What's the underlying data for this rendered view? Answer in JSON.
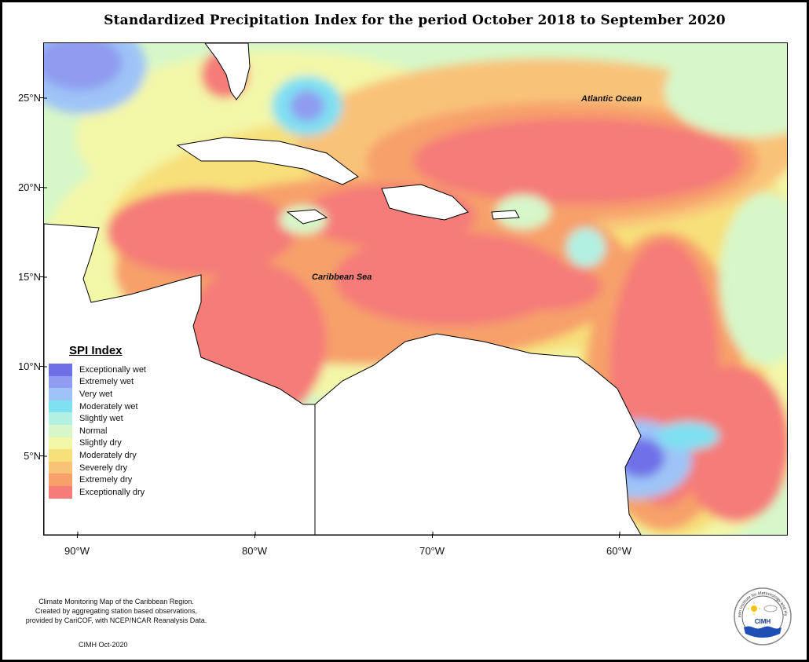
{
  "title": "Standardized Precipitation Index for the period October 2018 to September 2020",
  "axes": {
    "lat_labels": [
      "25°N",
      "20°N",
      "15°N",
      "10°N",
      "5°N"
    ],
    "lon_labels": [
      "90°W",
      "80°W",
      "70°W",
      "60°W"
    ]
  },
  "map_labels": {
    "atlantic": "Atlantic Ocean",
    "caribbean": "Caribbean Sea"
  },
  "legend": {
    "title": "SPI Index",
    "items": [
      {
        "label": "Exceptionally wet",
        "color": "#6f6fe8"
      },
      {
        "label": "Extremely wet",
        "color": "#8f9cf0"
      },
      {
        "label": "Very wet",
        "color": "#9ec4f7"
      },
      {
        "label": "Moderately wet",
        "color": "#7fe0f2"
      },
      {
        "label": "Slightly wet",
        "color": "#b2f0e2"
      },
      {
        "label": "Normal",
        "color": "#d7f7c8"
      },
      {
        "label": "Slightly dry",
        "color": "#f3f7a8"
      },
      {
        "label": "Moderately dry",
        "color": "#f7e07a"
      },
      {
        "label": "Severely dry",
        "color": "#f9c279"
      },
      {
        "label": "Extremely dry",
        "color": "#f7a06a"
      },
      {
        "label": "Exceptionally dry",
        "color": "#f57c78"
      }
    ]
  },
  "credit": {
    "line1": "Climate Monitoring Map of the Caribbean Region.",
    "line2": "Created by aggregating station based observations,",
    "line3": "provided by CariCOF, with NCEP/NCAR Reanalysis Data."
  },
  "footer_id": "CIMH Oct-2020",
  "logo": {
    "arc_text": "Caribbean Institute for Meteorology and Hydrology",
    "abbr": "CIMH"
  }
}
